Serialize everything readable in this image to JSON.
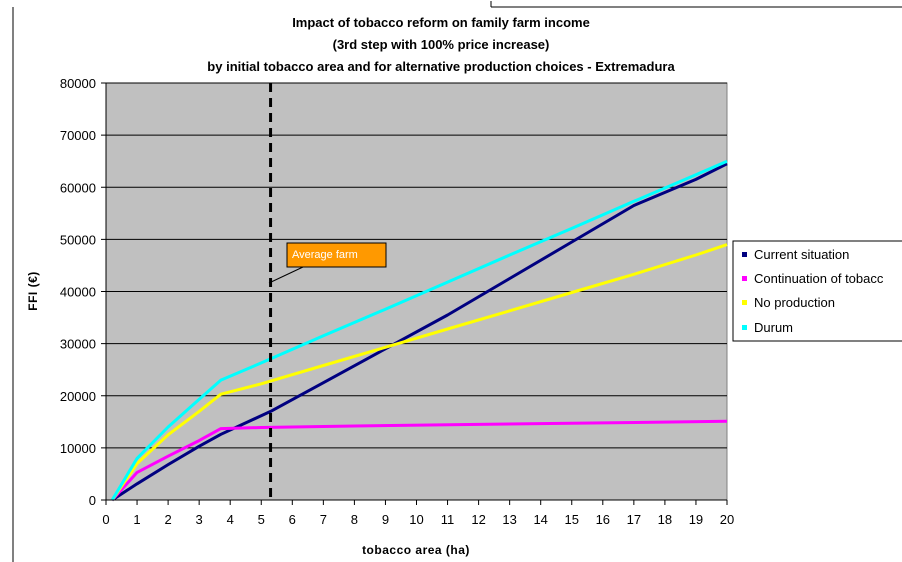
{
  "chart_data": {
    "type": "line",
    "title_lines": [
      "Impact of  tobacco reform on family farm income",
      "(3rd step with 100% price increase)",
      "by initial tobacco area and for alternative production choices - Extremadura"
    ],
    "xlabel": "tobacco area (ha)",
    "ylabel": "FFI (€)",
    "xlim": [
      0,
      20
    ],
    "ylim": [
      0,
      80000
    ],
    "x_ticks": [
      0,
      1,
      2,
      3,
      4,
      5,
      6,
      7,
      8,
      9,
      10,
      11,
      12,
      13,
      14,
      15,
      16,
      17,
      18,
      19,
      20
    ],
    "y_ticks": [
      0,
      10000,
      20000,
      30000,
      40000,
      50000,
      60000,
      70000,
      80000
    ],
    "grid": "horizontal",
    "plot_background": "#c0c0c0",
    "legend_position": "right",
    "series": [
      {
        "name": "Current situation",
        "color": "#000080",
        "points": [
          [
            0.2,
            0
          ],
          [
            1,
            3100
          ],
          [
            2,
            6800
          ],
          [
            3,
            10300
          ],
          [
            3.7,
            12600
          ],
          [
            5.3,
            17000
          ],
          [
            7,
            22500
          ],
          [
            9,
            29000
          ],
          [
            11,
            35500
          ],
          [
            13,
            42500
          ],
          [
            15,
            49500
          ],
          [
            17,
            56500
          ],
          [
            19,
            61500
          ],
          [
            20,
            64500
          ]
        ]
      },
      {
        "name": "Continuation of tobacco",
        "color": "#ff00ff",
        "points": [
          [
            0.2,
            0
          ],
          [
            1,
            5300
          ],
          [
            2,
            8400
          ],
          [
            3,
            11400
          ],
          [
            3.7,
            13700
          ],
          [
            5,
            13900
          ],
          [
            8,
            14200
          ],
          [
            12,
            14500
          ],
          [
            16,
            14800
          ],
          [
            20,
            15100
          ]
        ]
      },
      {
        "name": "No production",
        "color": "#ffff00",
        "points": [
          [
            0.2,
            0
          ],
          [
            1,
            7000
          ],
          [
            2,
            12500
          ],
          [
            3,
            17000
          ],
          [
            3.7,
            20300
          ],
          [
            5,
            22300
          ],
          [
            7,
            25800
          ],
          [
            9,
            29300
          ],
          [
            11,
            32800
          ],
          [
            13,
            36300
          ],
          [
            15,
            39800
          ],
          [
            17,
            43300
          ],
          [
            19,
            47000
          ],
          [
            20,
            49000
          ]
        ]
      },
      {
        "name": "Durum",
        "color": "#00ffff",
        "points": [
          [
            0.2,
            0
          ],
          [
            1,
            8000
          ],
          [
            2,
            14000
          ],
          [
            3,
            19300
          ],
          [
            3.7,
            23000
          ],
          [
            5,
            26300
          ],
          [
            7,
            31500
          ],
          [
            9,
            36600
          ],
          [
            11,
            41800
          ],
          [
            13,
            47000
          ],
          [
            15,
            52100
          ],
          [
            17,
            57300
          ],
          [
            19,
            62400
          ],
          [
            20,
            65000
          ]
        ]
      }
    ],
    "legend_labels": [
      "Current situation",
      "Continuation of tobacc",
      "No production",
      "Durum"
    ],
    "reference_line": {
      "x": 5.3,
      "style": "dashed",
      "color": "#000000"
    },
    "annotation": {
      "text": "Average farm",
      "x": 5.3,
      "y": 41500,
      "fill": "#ff9900"
    }
  }
}
